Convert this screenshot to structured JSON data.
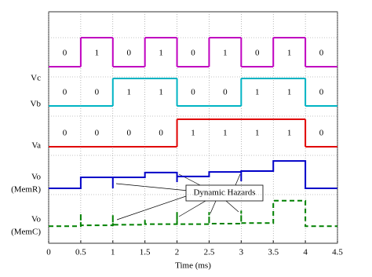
{
  "chart_data": {
    "type": "timing",
    "xlabel": "Time (ms)",
    "xlim": [
      0,
      4.5
    ],
    "xticks": [
      0,
      0.5,
      1,
      1.5,
      2,
      2.5,
      3,
      3.5,
      4,
      4.5
    ],
    "grid": true,
    "edges": [
      0,
      0.5,
      1,
      1.5,
      2,
      2.5,
      3,
      3.5,
      4,
      4.5
    ],
    "digital": [
      {
        "name": "Vc",
        "color": "#c000c0",
        "values": [
          0,
          1,
          0,
          1,
          0,
          1,
          0,
          1,
          0
        ]
      },
      {
        "name": "Vb",
        "color": "#00b4c4",
        "values": [
          0,
          0,
          1,
          1,
          0,
          0,
          1,
          1,
          0
        ]
      },
      {
        "name": "Va",
        "color": "#e00000",
        "values": [
          0,
          0,
          0,
          0,
          1,
          1,
          1,
          1,
          0
        ]
      }
    ],
    "series": [
      {
        "name": [
          "Vo",
          "(MemR)"
        ],
        "color": "#0000c8",
        "dashed": false,
        "x": [
          0,
          0.5,
          0.5,
          1,
          1,
          1,
          1.5,
          1.5,
          2,
          2,
          2,
          2.5,
          2.5,
          3,
          3,
          3,
          3.5,
          3.5,
          4,
          4,
          4.5
        ],
        "values": [
          0,
          0,
          0.39,
          0.39,
          0,
          0.39,
          0.39,
          0.56,
          0.56,
          0.22,
          0.42,
          0.42,
          0.58,
          0.58,
          0.25,
          0.61,
          0.61,
          0.97,
          0.97,
          0,
          0
        ]
      },
      {
        "name": [
          "Vo",
          "(MemC)"
        ],
        "color": "#008000",
        "dashed": true,
        "x": [
          0,
          0.5,
          0.5,
          0.5,
          1,
          1,
          1,
          1.5,
          1.5,
          1.5,
          2,
          2,
          2,
          2.5,
          2.5,
          2.5,
          3,
          3,
          3,
          3.5,
          3.5,
          4,
          4,
          4.5
        ],
        "values": [
          0.05,
          0.05,
          0.5,
          0.08,
          0.08,
          0.45,
          0.1,
          0.1,
          0.3,
          0.12,
          0.12,
          0.55,
          0.12,
          0.12,
          0.55,
          0.14,
          0.14,
          0.6,
          0.16,
          0.16,
          0.95,
          0.95,
          0.05,
          0.05
        ]
      }
    ],
    "annotation": "Dynamic Hazards"
  }
}
